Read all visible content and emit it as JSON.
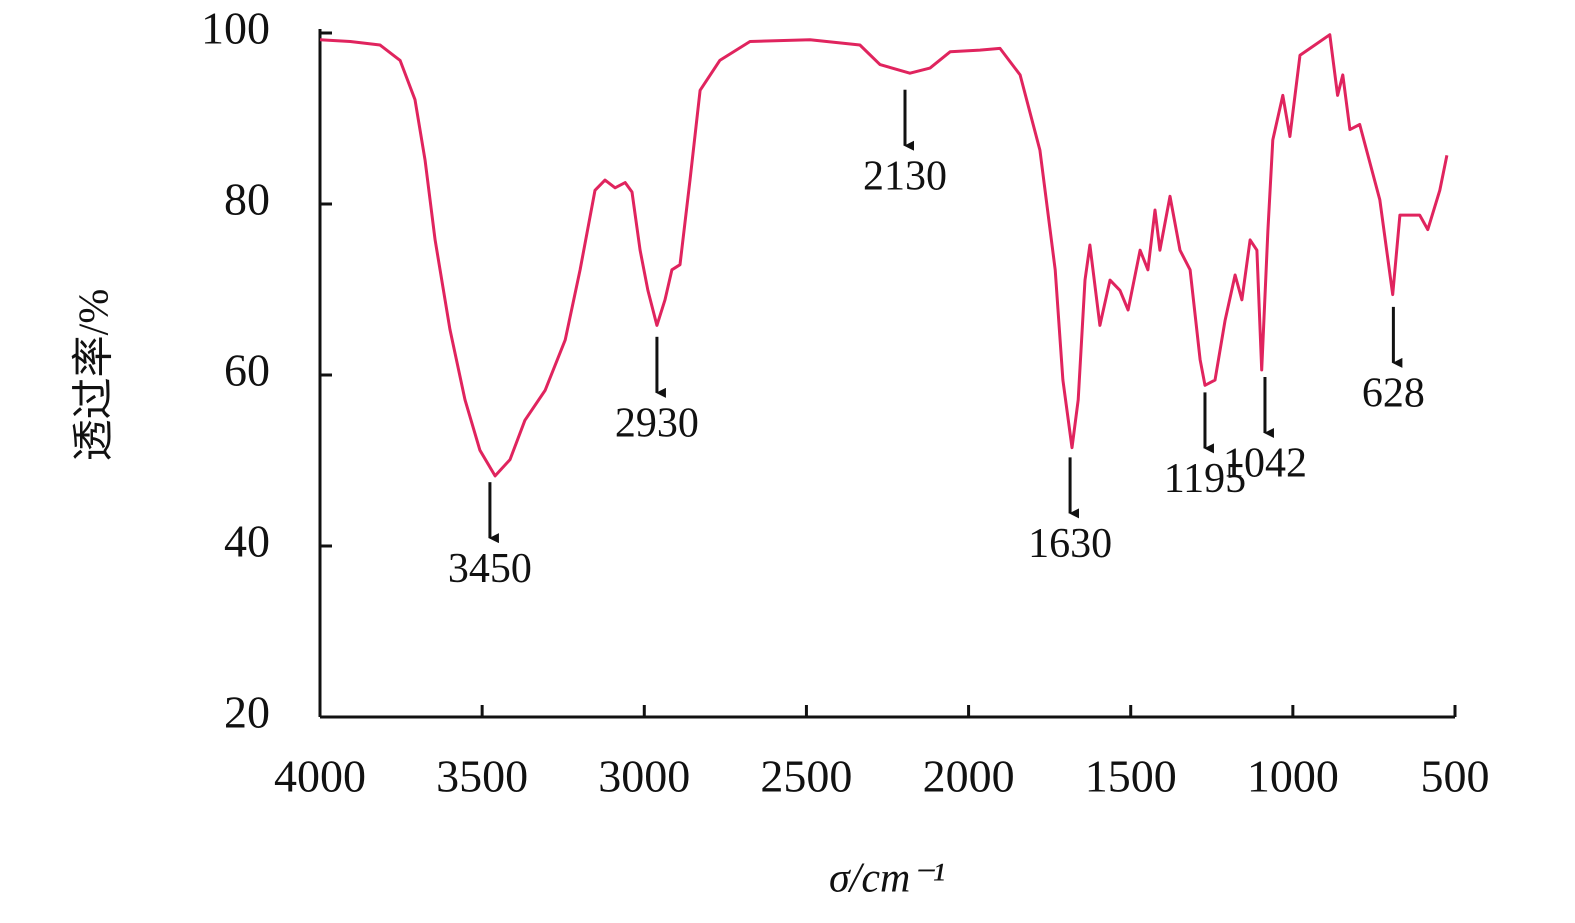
{
  "chart_data": {
    "type": "line",
    "xlabel": "σ/cm⁻¹",
    "ylabel": "透过率/%",
    "x": [
      4000,
      3907,
      3815,
      3753,
      3707,
      3676,
      3645,
      3599,
      3553,
      3507,
      3460,
      3414,
      3368,
      3306,
      3244,
      3198,
      3152,
      3121,
      3090,
      3059,
      3038,
      3013,
      2989,
      2961,
      2936,
      2915,
      2890,
      2859,
      2828,
      2767,
      2674,
      2489,
      2335,
      2273,
      2181,
      2119,
      2057,
      1965,
      1903,
      1841,
      1780,
      1733,
      1709,
      1681,
      1662,
      1641,
      1626,
      1595,
      1564,
      1533,
      1508,
      1471,
      1447,
      1425,
      1410,
      1379,
      1348,
      1317,
      1286,
      1271,
      1240,
      1209,
      1178,
      1157,
      1132,
      1111,
      1096,
      1077,
      1062,
      1031,
      1009,
      978,
      932,
      886,
      862,
      846,
      824,
      794,
      732,
      692,
      670,
      609,
      584,
      547,
      525
    ],
    "values": [
      99.2,
      99.0,
      98.6,
      96.8,
      92.2,
      85.1,
      75.8,
      65.3,
      57.1,
      51.2,
      48.2,
      50.1,
      54.7,
      58.2,
      64.1,
      72.3,
      81.6,
      82.8,
      81.9,
      82.5,
      81.4,
      74.6,
      69.9,
      65.8,
      68.8,
      72.3,
      72.9,
      82.8,
      93.3,
      96.8,
      99.0,
      99.2,
      98.6,
      96.3,
      95.3,
      95.9,
      97.8,
      98.0,
      98.2,
      95.1,
      86.3,
      72.3,
      59.4,
      51.5,
      57.1,
      71.1,
      75.2,
      65.8,
      71.1,
      69.9,
      67.6,
      74.6,
      72.3,
      79.3,
      74.6,
      80.9,
      74.6,
      72.3,
      61.8,
      58.8,
      59.4,
      66.4,
      71.7,
      68.8,
      75.8,
      74.6,
      60.6,
      76.9,
      87.5,
      92.7,
      87.9,
      97.4,
      98.6,
      99.8,
      92.7,
      95.1,
      88.7,
      89.3,
      80.5,
      69.4,
      78.7,
      78.7,
      77.0,
      81.6,
      85.7
    ],
    "color": "#e0245e",
    "xlim": [
      4000,
      500
    ],
    "ylim": [
      20,
      100
    ],
    "xticks": [
      4000,
      3500,
      3000,
      2500,
      2000,
      1500,
      1000,
      500
    ],
    "yticks": [
      20,
      40,
      60,
      80,
      100
    ],
    "annotations": [
      {
        "text": "3450",
        "x": 3476,
        "y": 47.7
      },
      {
        "text": "2930",
        "x": 2961,
        "y": 64.7
      },
      {
        "text": "2130",
        "x": 2196,
        "y": 93.6
      },
      {
        "text": "1630",
        "x": 1687,
        "y": 50.6
      },
      {
        "text": "1195",
        "x": 1271,
        "y": 58.2
      },
      {
        "text": "1042",
        "x": 1086,
        "y": 60
      },
      {
        "text": "628",
        "x": 690,
        "y": 68.2
      }
    ]
  }
}
